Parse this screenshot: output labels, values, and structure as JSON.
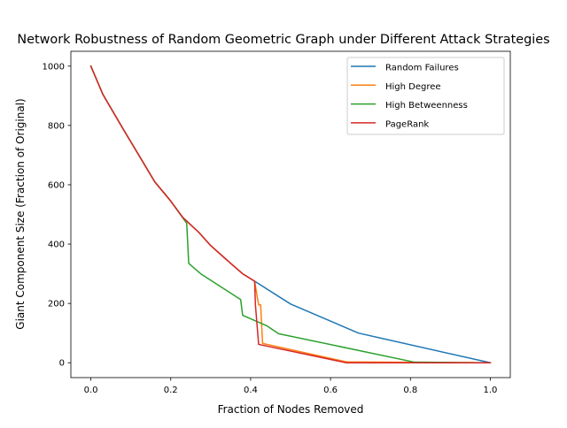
{
  "chart_data": {
    "type": "line",
    "title": "Network Robustness of Random Geometric Graph under Different Attack Strategies",
    "xlabel": "Fraction of Nodes Removed",
    "ylabel": "Giant Component Size (Fraction of Original)",
    "xlim": [
      -0.05,
      1.05
    ],
    "ylim": [
      -50,
      1050
    ],
    "xticks": [
      "0.0",
      "0.2",
      "0.4",
      "0.6",
      "0.8",
      "1.0"
    ],
    "xtick_values": [
      0.0,
      0.2,
      0.4,
      0.6,
      0.8,
      1.0
    ],
    "yticks": [
      "0",
      "200",
      "400",
      "600",
      "800",
      "1000"
    ],
    "ytick_values": [
      0,
      200,
      400,
      600,
      800,
      1000
    ],
    "grid": false,
    "legend_position": "upper right",
    "series": [
      {
        "name": "Random Failures",
        "color": "#1f77b4",
        "x": [
          0.0,
          0.03,
          0.08,
          0.12,
          0.16,
          0.2,
          0.23,
          0.27,
          0.3,
          0.35,
          0.38,
          0.41,
          0.5,
          0.67,
          1.0
        ],
        "y": [
          1000,
          905,
          790,
          700,
          610,
          545,
          490,
          440,
          395,
          335,
          300,
          275,
          198,
          100,
          0
        ]
      },
      {
        "name": "High Degree",
        "color": "#ff7f0e",
        "x": [
          0.0,
          0.03,
          0.08,
          0.12,
          0.16,
          0.2,
          0.23,
          0.27,
          0.3,
          0.35,
          0.38,
          0.41,
          0.42,
          0.425,
          0.43,
          0.64,
          1.0
        ],
        "y": [
          1000,
          905,
          790,
          700,
          610,
          545,
          490,
          440,
          395,
          335,
          300,
          275,
          195,
          195,
          65,
          3,
          0
        ]
      },
      {
        "name": "High Betweenness",
        "color": "#2ca02c",
        "x": [
          0.0,
          0.03,
          0.08,
          0.12,
          0.16,
          0.2,
          0.24,
          0.245,
          0.275,
          0.375,
          0.38,
          0.44,
          0.47,
          0.81,
          1.0
        ],
        "y": [
          1000,
          905,
          790,
          700,
          610,
          545,
          470,
          335,
          300,
          213,
          160,
          125,
          98,
          2,
          0
        ]
      },
      {
        "name": "PageRank",
        "color": "#d62728",
        "x": [
          0.0,
          0.03,
          0.08,
          0.12,
          0.16,
          0.2,
          0.23,
          0.27,
          0.3,
          0.35,
          0.38,
          0.41,
          0.412,
          0.42,
          0.64,
          1.0
        ],
        "y": [
          1000,
          905,
          790,
          700,
          610,
          545,
          490,
          440,
          395,
          335,
          300,
          275,
          195,
          62,
          0,
          0
        ]
      }
    ]
  }
}
